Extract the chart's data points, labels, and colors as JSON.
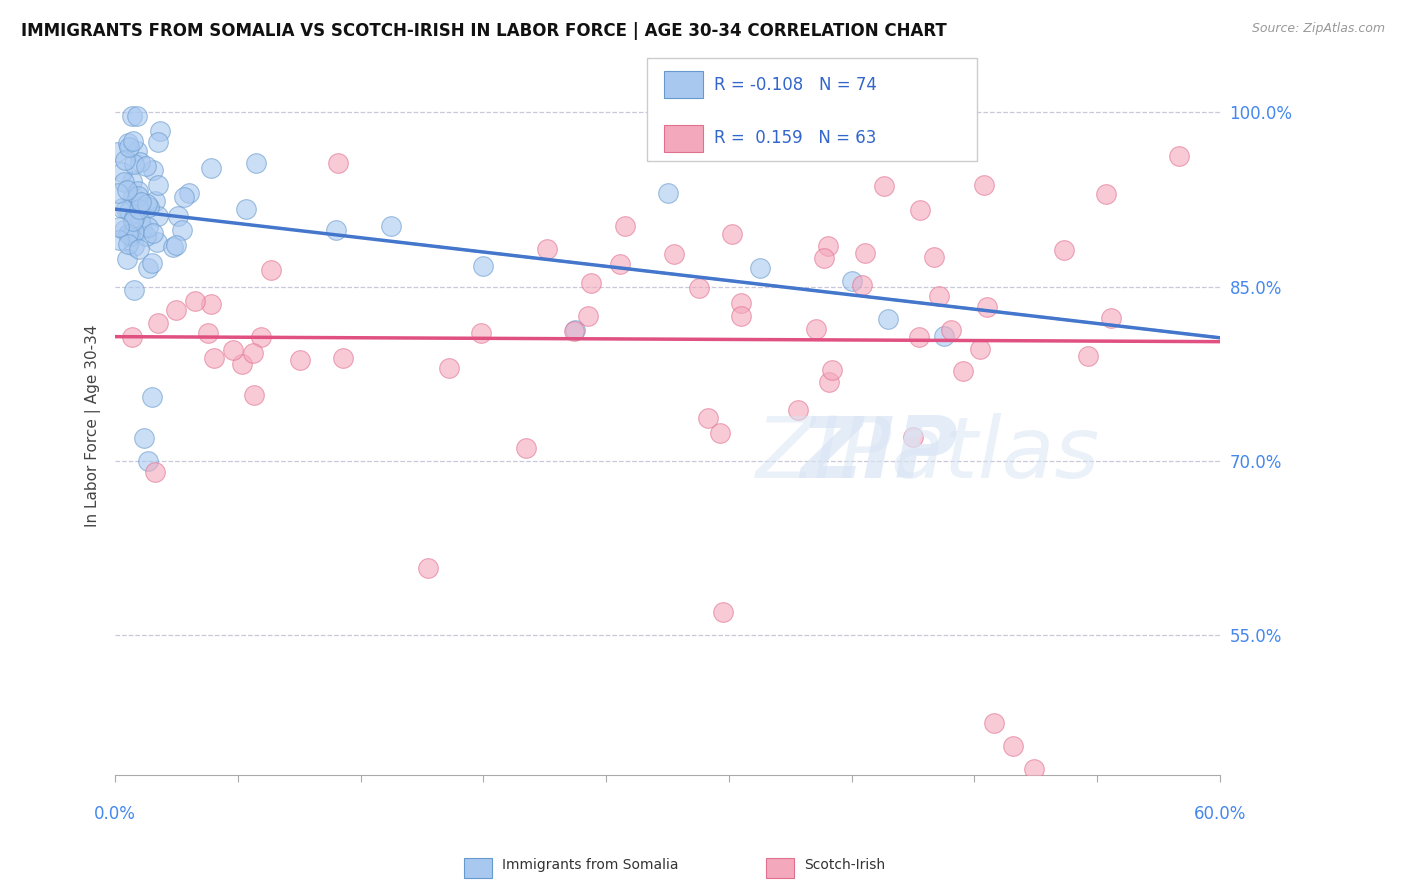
{
  "title": "IMMIGRANTS FROM SOMALIA VS SCOTCH-IRISH IN LABOR FORCE | AGE 30-34 CORRELATION CHART",
  "source": "Source: ZipAtlas.com",
  "ylabel": "In Labor Force | Age 30-34",
  "xlim": [
    0.0,
    0.6
  ],
  "ylim": [
    0.43,
    1.03
  ],
  "y_ticks": [
    0.55,
    0.7,
    0.85,
    1.0
  ],
  "y_tick_labels": [
    "55.0%",
    "70.0%",
    "85.0%",
    "100.0%"
  ],
  "somalia_color": "#A8C8F0",
  "scotch_color": "#F4A8BC",
  "somalia_edge": "#6699CC",
  "scotch_edge": "#E07090",
  "trendline_somalia_color": "#4477CC",
  "trendline_scotch_color": "#E05080",
  "legend_R_somalia": "-0.108",
  "legend_N_somalia": "74",
  "legend_R_scotch": "0.159",
  "legend_N_scotch": "63",
  "background_color": "#ffffff",
  "grid_color": "#c8c8d8"
}
